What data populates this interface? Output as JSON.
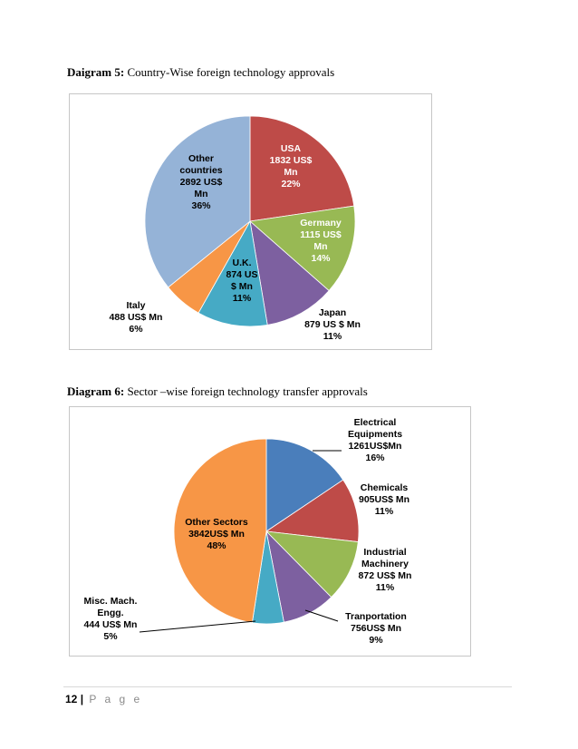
{
  "captions": {
    "d5_bold": "Daigram 5:",
    "d5_text": " Country-Wise foreign technology approvals",
    "d6_bold": "Diagram 6:",
    "d6_text": " Sector –wise foreign technology transfer approvals"
  },
  "footer": {
    "page": "12",
    "sep": "|",
    "word": "P a g e"
  },
  "chart_data": [
    {
      "type": "pie",
      "title": "",
      "slices": [
        {
          "name": "USA",
          "value": 1832,
          "percent": 22,
          "color": "#be4b48",
          "label": [
            "USA",
            "1832 US$",
            "Mn",
            "22%"
          ],
          "label_color": "#ffffff"
        },
        {
          "name": "Germany",
          "value": 1115,
          "percent": 14,
          "color": "#98b954",
          "label": [
            "Germany",
            "1115 US$",
            "Mn",
            "14%"
          ],
          "label_color": "#ffffff"
        },
        {
          "name": "Japan",
          "value": 879,
          "percent": 11,
          "color": "#7d60a0",
          "label": [
            "Japan",
            "879 US $ Mn",
            "11%"
          ],
          "label_color": "#000000"
        },
        {
          "name": "U.K.",
          "value": 874,
          "percent": 11,
          "color": "#46aac5",
          "label": [
            "U.K.",
            "874 US",
            "$ Mn",
            "11%"
          ],
          "label_color": "#000000"
        },
        {
          "name": "Italy",
          "value": 488,
          "percent": 6,
          "color": "#f79646",
          "label": [
            "Italy",
            "488 US$ Mn",
            "6%"
          ],
          "label_color": "#000000"
        },
        {
          "name": "Other countries",
          "value": 2892,
          "percent": 36,
          "color": "#95b3d7",
          "label": [
            "Other",
            "countries",
            "2892  US$",
            "Mn",
            "36%"
          ],
          "label_color": "#000000"
        }
      ]
    },
    {
      "type": "pie",
      "title": "",
      "slices": [
        {
          "name": "Electrical Equipments",
          "value": 1261,
          "percent": 16,
          "color": "#4a7ebb",
          "label": [
            "Electrical",
            "Equipments",
            "1261US$Mn",
            "16%"
          ],
          "label_color": "#000000"
        },
        {
          "name": "Chemicals",
          "value": 905,
          "percent": 11,
          "color": "#be4b48",
          "label": [
            "Chemicals",
            "905US$ Mn",
            "11%"
          ],
          "label_color": "#000000"
        },
        {
          "name": "Industrial Machinery",
          "value": 872,
          "percent": 11,
          "color": "#98b954",
          "label": [
            "Industrial",
            "Machinery",
            "872 US$ Mn",
            "11%"
          ],
          "label_color": "#000000"
        },
        {
          "name": "Tranportation",
          "value": 756,
          "percent": 9,
          "color": "#7d60a0",
          "label": [
            "Tranportation",
            "756US$ Mn",
            "9%"
          ],
          "label_color": "#000000"
        },
        {
          "name": "Misc. Mach. Engg.",
          "value": 444,
          "percent": 5,
          "color": "#46aac5",
          "label": [
            "Misc. Mach.",
            "Engg.",
            "444 US$ Mn",
            "5%"
          ],
          "label_color": "#000000"
        },
        {
          "name": "Other Sectors",
          "value": 3842,
          "percent": 48,
          "color": "#f79646",
          "label": [
            "Other Sectors",
            "3842US$ Mn",
            "48%"
          ],
          "label_color": "#000000"
        }
      ]
    }
  ]
}
